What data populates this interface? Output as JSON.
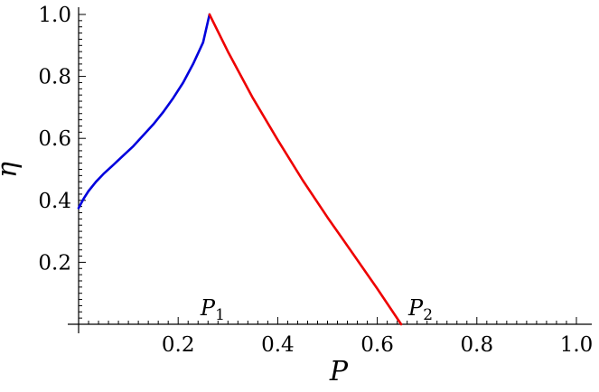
{
  "chart_data": {
    "type": "line",
    "xlabel": "P",
    "ylabel": "η",
    "xlim": [
      0,
      1.0
    ],
    "ylim": [
      0,
      1.0
    ],
    "xticks": [
      0.2,
      0.4,
      0.6,
      0.8,
      1.0
    ],
    "xtick_labels": [
      "0.2",
      "0.4",
      "0.6",
      "0.8",
      "1.0"
    ],
    "yticks": [
      0.2,
      0.4,
      0.6,
      0.8,
      1.0
    ],
    "ytick_labels": [
      "0.2",
      "0.4",
      "0.6",
      "0.8",
      "1.0"
    ],
    "grid": false,
    "series": [
      {
        "color": "#0000dd",
        "x": [
          0,
          0.01,
          0.02,
          0.035,
          0.05,
          0.07,
          0.09,
          0.11,
          0.13,
          0.15,
          0.17,
          0.19,
          0.21,
          0.23,
          0.25,
          0.263
        ],
        "y": [
          0.375,
          0.405,
          0.43,
          0.46,
          0.485,
          0.515,
          0.545,
          0.575,
          0.61,
          0.645,
          0.685,
          0.73,
          0.78,
          0.84,
          0.91,
          1.0
        ]
      },
      {
        "color": "#ee0000",
        "x": [
          0.263,
          0.3,
          0.35,
          0.4,
          0.45,
          0.5,
          0.55,
          0.6,
          0.648
        ],
        "y": [
          1.0,
          0.88,
          0.73,
          0.595,
          0.465,
          0.345,
          0.23,
          0.115,
          0.0
        ]
      }
    ],
    "annotations": [
      {
        "text": "P",
        "sub": "1",
        "x": 0.263,
        "y": 0.0
      },
      {
        "text": "P",
        "sub": "2",
        "x": 0.648,
        "y": 0.0
      }
    ]
  }
}
